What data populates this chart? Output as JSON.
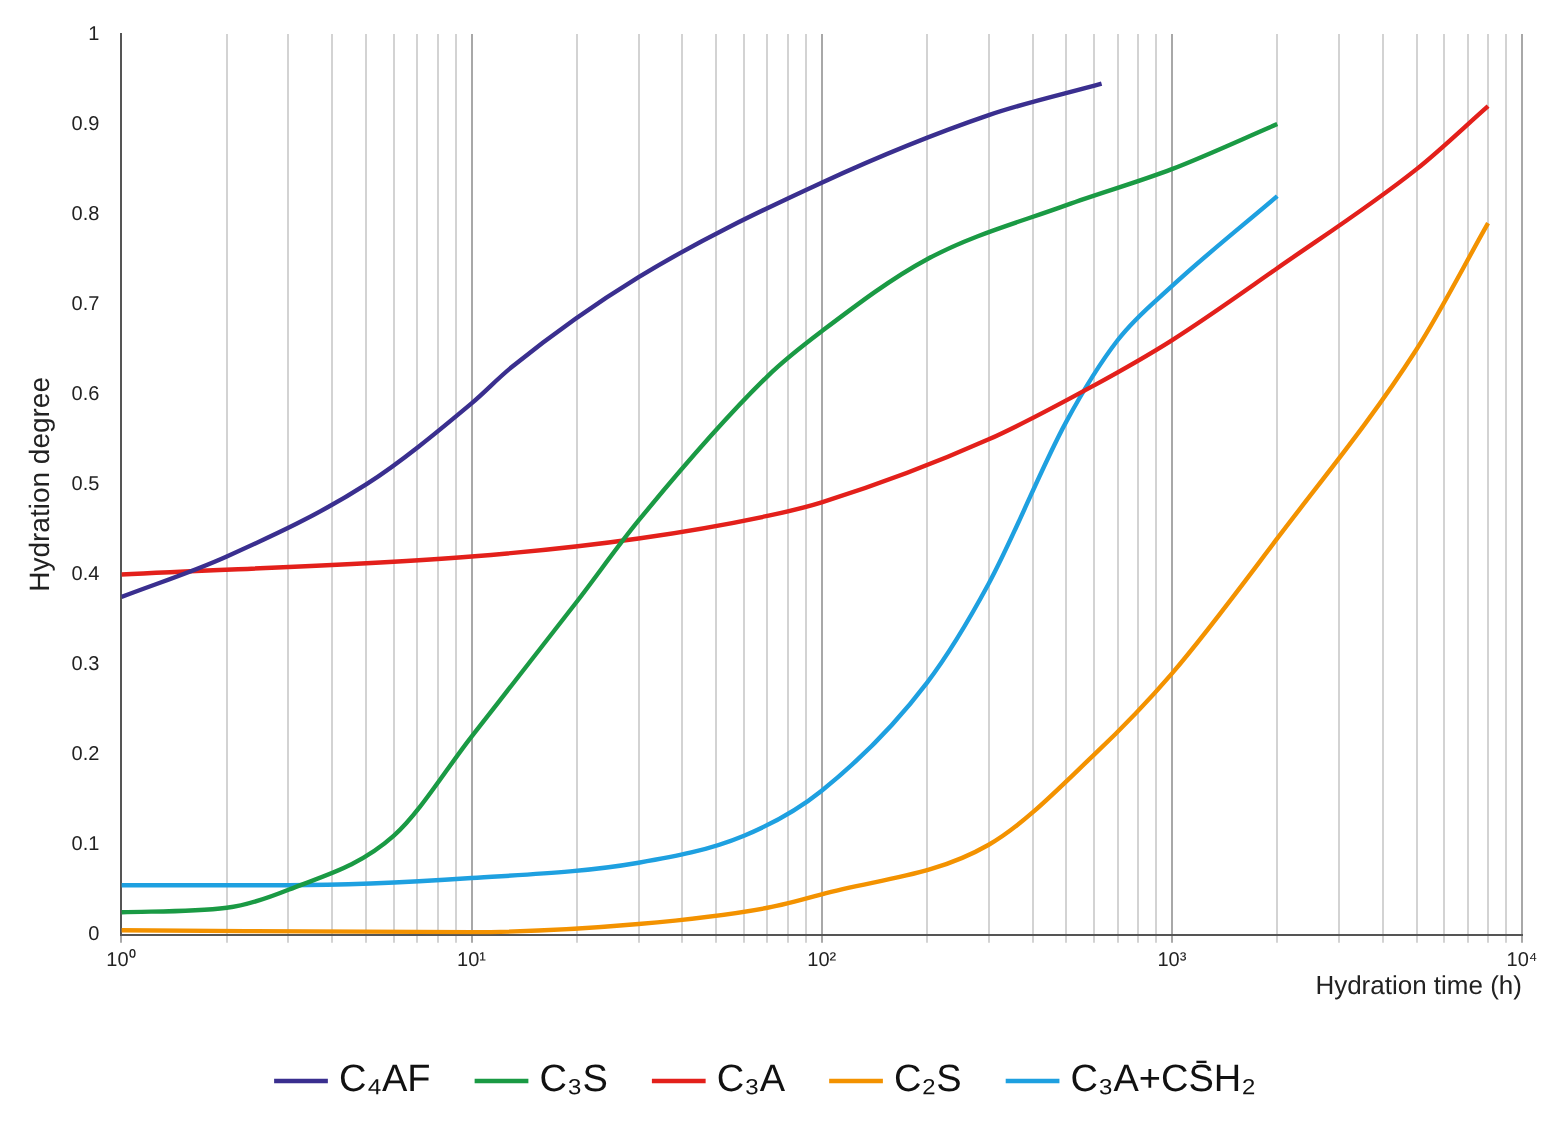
{
  "chart_data": {
    "type": "line",
    "xlabel": "Hydration time (h)",
    "ylabel": "Hydration degree",
    "log": "x",
    "xlim": [
      1,
      10000
    ],
    "ylim": [
      0,
      1
    ],
    "xticks": [
      {
        "value": 1,
        "label": "10⁰"
      },
      {
        "value": 2,
        "label": null
      },
      {
        "value": 3,
        "label": null
      },
      {
        "value": 4,
        "label": null
      },
      {
        "value": 5,
        "label": null
      },
      {
        "value": 6,
        "label": null
      },
      {
        "value": 7,
        "label": null
      },
      {
        "value": 8,
        "label": null
      },
      {
        "value": 9,
        "label": null
      },
      {
        "value": 10,
        "label": "10¹"
      },
      {
        "value": 20,
        "label": null
      },
      {
        "value": 30,
        "label": null
      },
      {
        "value": 40,
        "label": null
      },
      {
        "value": 50,
        "label": null
      },
      {
        "value": 60,
        "label": null
      },
      {
        "value": 70,
        "label": null
      },
      {
        "value": 80,
        "label": null
      },
      {
        "value": 90,
        "label": null
      },
      {
        "value": 100,
        "label": "10²"
      },
      {
        "value": 200,
        "label": null
      },
      {
        "value": 300,
        "label": null
      },
      {
        "value": 400,
        "label": null
      },
      {
        "value": 500,
        "label": null
      },
      {
        "value": 600,
        "label": null
      },
      {
        "value": 700,
        "label": null
      },
      {
        "value": 800,
        "label": null
      },
      {
        "value": 900,
        "label": null
      },
      {
        "value": 1000,
        "label": "10³"
      },
      {
        "value": 2000,
        "label": null
      },
      {
        "value": 3000,
        "label": null
      },
      {
        "value": 4000,
        "label": null
      },
      {
        "value": 5000,
        "label": null
      },
      {
        "value": 6000,
        "label": null
      },
      {
        "value": 7000,
        "label": null
      },
      {
        "value": 8000,
        "label": null
      },
      {
        "value": 9000,
        "label": null
      },
      {
        "value": 10000,
        "label": "10⁴"
      }
    ],
    "yticks": [
      0,
      0.1,
      0.2,
      0.3,
      0.4,
      0.5,
      0.6,
      0.7,
      0.8,
      0.9,
      1
    ],
    "grid": "x",
    "legend": "bottom",
    "marker": "none",
    "line_style": "solid",
    "series": [
      {
        "name": "C₄AF",
        "color": "#3a2f8f",
        "x": [
          1,
          2,
          5,
          10,
          13,
          30,
          100,
          300,
          630
        ],
        "values": [
          0.375,
          0.42,
          0.5,
          0.59,
          0.63,
          0.73,
          0.835,
          0.91,
          0.945
        ]
      },
      {
        "name": "C₃S",
        "color": "#1a9a44",
        "x": [
          1,
          2,
          3,
          6,
          10,
          20,
          30,
          70,
          100,
          200,
          500,
          1000,
          2000
        ],
        "values": [
          0.025,
          0.03,
          0.05,
          0.11,
          0.22,
          0.37,
          0.46,
          0.62,
          0.67,
          0.75,
          0.81,
          0.85,
          0.9
        ]
      },
      {
        "name": "C₃A",
        "color": "#e3201b",
        "x": [
          1,
          10,
          30,
          70,
          100,
          300,
          600,
          1000,
          2000,
          5000,
          8000
        ],
        "values": [
          0.4,
          0.42,
          0.44,
          0.465,
          0.48,
          0.55,
          0.61,
          0.66,
          0.74,
          0.85,
          0.92
        ]
      },
      {
        "name": "C₂S",
        "color": "#f39200",
        "x": [
          1,
          10,
          30,
          70,
          100,
          300,
          600,
          1000,
          2000,
          5000,
          8000
        ],
        "values": [
          0.005,
          0.003,
          0.012,
          0.03,
          0.045,
          0.1,
          0.2,
          0.29,
          0.44,
          0.65,
          0.79
        ]
      },
      {
        "name": "C₃A+CS̄H₂",
        "color": "#1ea0e0",
        "x": [
          1,
          3,
          10,
          30,
          60,
          100,
          200,
          300,
          500,
          700,
          1000,
          2000
        ],
        "values": [
          0.055,
          0.055,
          0.063,
          0.08,
          0.11,
          0.16,
          0.28,
          0.39,
          0.57,
          0.66,
          0.72,
          0.82
        ]
      }
    ]
  }
}
